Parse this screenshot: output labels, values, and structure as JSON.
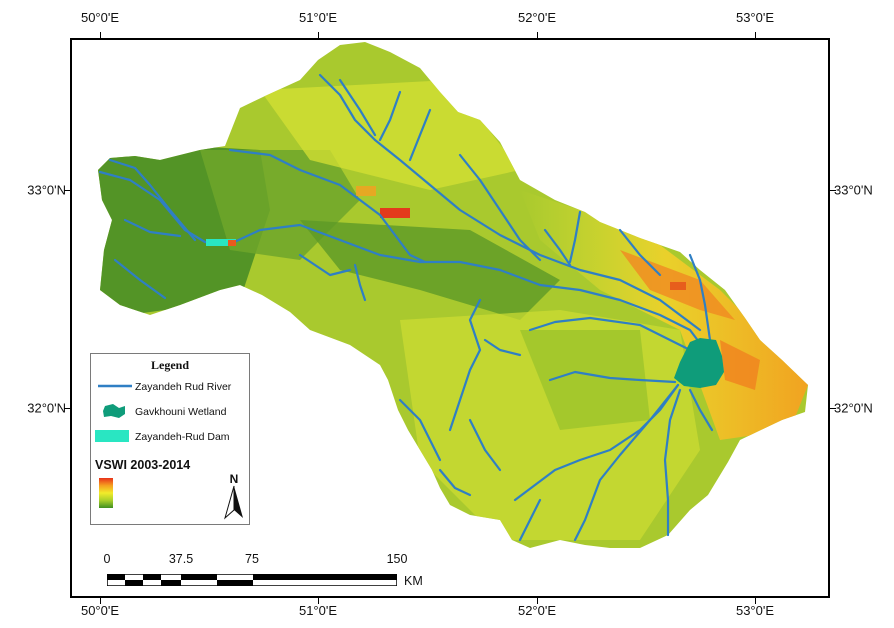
{
  "axes": {
    "longitude_labels": [
      "50°0'E",
      "51°0'E",
      "52°0'E",
      "53°0'E"
    ],
    "latitude_labels": [
      "33°0'N",
      "32°0'N"
    ]
  },
  "legend": {
    "title": "Legend",
    "items": [
      {
        "label": "Zayandeh Rud River",
        "symbol": "river-line",
        "color": "#2f7fc4"
      },
      {
        "label": "Gavkhouni Wetland",
        "symbol": "wetland-patch",
        "color": "#0f9c7a"
      },
      {
        "label": "Zayandeh-Rud Dam",
        "symbol": "dam-patch",
        "color": "#29e6c2"
      }
    ],
    "index_title": "VSWI 2003-2014",
    "ramp_colors": [
      "#e8321a",
      "#f5a020",
      "#f2ec2a",
      "#a8cf2a",
      "#3f8f22"
    ],
    "north_label": "N"
  },
  "scale_bar": {
    "labels": [
      "0",
      "37.5",
      "75",
      "150"
    ],
    "unit": "KM"
  },
  "colors": {
    "river": "#2f7fc4",
    "wetland": "#0f9c7a",
    "dam": "#29e6c2",
    "base_green": "#8cbd2c",
    "dark_green": "#4c8f25",
    "yellow": "#e4e735",
    "orange": "#f5a020",
    "red": "#e33a1c"
  }
}
